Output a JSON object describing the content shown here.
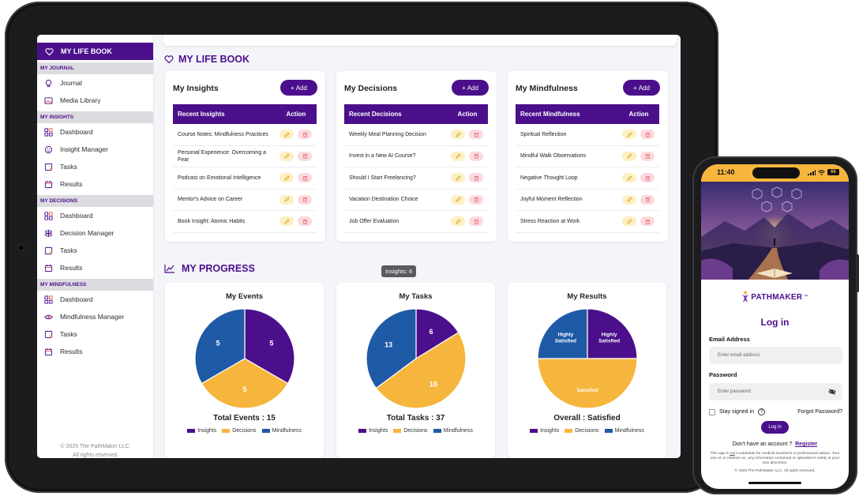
{
  "sidebar": {
    "brand": "MY LIFE BOOK",
    "sections": [
      {
        "title": "MY JOURNAL",
        "items": [
          {
            "label": "Journal",
            "icon": "bulb-icon"
          },
          {
            "label": "Media Library",
            "icon": "image-icon"
          }
        ]
      },
      {
        "title": "MY INSIGHTS",
        "items": [
          {
            "label": "Dashboard",
            "icon": "dashboard-icon"
          },
          {
            "label": "Insight Manager",
            "icon": "smile-icon"
          },
          {
            "label": "Tasks",
            "icon": "task-icon"
          },
          {
            "label": "Results",
            "icon": "calendar-icon"
          }
        ]
      },
      {
        "title": "MY DECISIONS",
        "items": [
          {
            "label": "Dashboard",
            "icon": "dashboard-icon"
          },
          {
            "label": "Decision Manager",
            "icon": "signpost-icon"
          },
          {
            "label": "Tasks",
            "icon": "task-icon"
          },
          {
            "label": "Results",
            "icon": "calendar-icon"
          }
        ]
      },
      {
        "title": "MY MINDFULNESS",
        "items": [
          {
            "label": "Dashboard",
            "icon": "dashboard-icon"
          },
          {
            "label": "Mindfulness Manager",
            "icon": "eye-icon"
          },
          {
            "label": "Tasks",
            "icon": "task-icon"
          },
          {
            "label": "Results",
            "icon": "calendar-icon"
          }
        ]
      }
    ],
    "footer_line1": "© 2025 The PathMaker LLC.",
    "footer_line2": "All rights reserved."
  },
  "main": {
    "title": "MY LIFE BOOK",
    "progress_title": "MY PROGRESS",
    "tooltip": "Insights: 6",
    "add_label": "Add",
    "action_header": "Action",
    "cards": [
      {
        "title": "My Insights",
        "header": "Recent Insights",
        "rows": [
          "Course Notes: Mindfulness Practices",
          "Personal Experience: Overcoming a Fear",
          "Podcast on Emotional Intelligence",
          "Mentor's Advice on Career",
          "Book Insight: Atomic Habits"
        ]
      },
      {
        "title": "My Decisions",
        "header": "Recent Decisions",
        "rows": [
          "Weekly Meal Planning Decision",
          "Invest in a New AI Course?",
          "Should I Start Freelancing?",
          "Vacation Destination Choice",
          "Job Offer Evaluation"
        ]
      },
      {
        "title": "My Mindfulness",
        "header": "Recent Mindfulness",
        "rows": [
          "Spiritual Reflection",
          "Mindful Walk Observations",
          "Negative Thought Loop",
          "Joyful Moment Reflection",
          "Stress Reaction at Work"
        ]
      }
    ]
  },
  "colors": {
    "insights": "#4b0f8c",
    "decisions": "#f6b53c",
    "mindfulness": "#1f5aa6"
  },
  "chart_data": [
    {
      "type": "pie",
      "title": "My Events",
      "total": "Total Events : 15",
      "legend": [
        "Insights",
        "Decisions",
        "Mindfulness"
      ],
      "slices": [
        {
          "name": "Insights",
          "value": 5,
          "label": "5"
        },
        {
          "name": "Decisions",
          "value": 5,
          "label": "5"
        },
        {
          "name": "Mindfulness",
          "value": 5,
          "label": "5"
        }
      ]
    },
    {
      "type": "pie",
      "title": "My Tasks",
      "total": "Total Tasks : 37",
      "legend": [
        "Insights",
        "Decisions",
        "Mindfulness"
      ],
      "slices": [
        {
          "name": "Insights",
          "value": 6,
          "label": "6"
        },
        {
          "name": "Decisions",
          "value": 18,
          "label": "18"
        },
        {
          "name": "Mindfulness",
          "value": 13,
          "label": "13"
        }
      ]
    },
    {
      "type": "pie",
      "title": "My Results",
      "total": "Overall : Satisfied",
      "legend": [
        "Insights",
        "Decisions",
        "Mindfulness"
      ],
      "slices": [
        {
          "name": "Insights",
          "value": 1,
          "label": "Highly Satisfied"
        },
        {
          "name": "Decisions",
          "value": 2,
          "label": "Satisfied"
        },
        {
          "name": "Mindfulness",
          "value": 1,
          "label": "Highly Satisfied"
        }
      ]
    }
  ],
  "phone": {
    "time": "11:40",
    "battery": "66",
    "logo": "PATHMAKER",
    "logo_tm": "™",
    "login_title": "Log in",
    "email_label": "Email Address",
    "email_placeholder": "Enter email address",
    "password_label": "Password",
    "password_placeholder": "Enter password",
    "stay_signed": "Stay signed in",
    "forgot": "Forgot Password?",
    "login_btn": "Log in",
    "no_account": "Don't have an account ?",
    "register": "Register",
    "disclaimer_a": "This app is ",
    "disclaimer_not": "not",
    "disclaimer_b": " a substitute for medical treatment or professional advice. Your use of, or reliance on, any information contained or uploaded is solely at your own discretion.",
    "copyright": "© 2025 The PathMaker LLC. All rights reserved."
  }
}
